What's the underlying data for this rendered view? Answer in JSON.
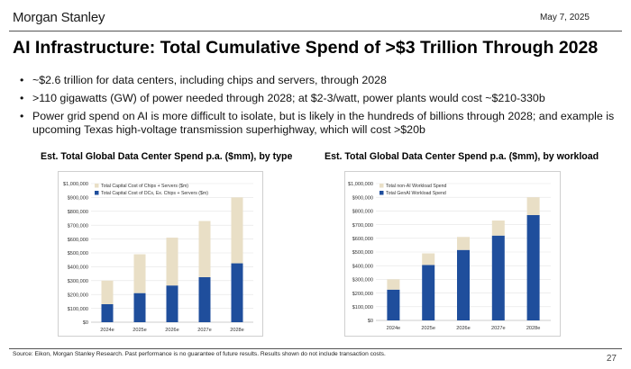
{
  "header": {
    "logo": "Morgan Stanley",
    "date": "May 7, 2025"
  },
  "title": "AI Infrastructure: Total Cumulative Spend of >$3 Trillion Through 2028",
  "bullets": [
    "~$2.6 trillion for data centers, including chips and servers, through 2028",
    ">110 gigawatts (GW) of power needed through 2028; at $2-3/watt, power plants would cost ~$210-330b",
    "Power grid spend on AI is more difficult to isolate, but is likely in the hundreds of billions through 2028; and example is upcoming Texas high-voltage transmission superhighway, which will cost >$20b"
  ],
  "colors": {
    "navy": "#1f4e9c",
    "beige": "#e9dfc6"
  },
  "chart_data": [
    {
      "type": "bar",
      "stacked": true,
      "title": "Est. Total Global Data Center Spend p.a. ($mm), by type",
      "categories": [
        "2024e",
        "2025e",
        "2026e",
        "2027e",
        "2028e"
      ],
      "series": [
        {
          "name": "Total Capital Cost of DCs, Ex. Chips + Servers ($m)",
          "color": "#1f4e9c",
          "values": [
            130000,
            210000,
            265000,
            325000,
            425000
          ]
        },
        {
          "name": "Total Capital Cost of Chips + Servers ($m)",
          "color": "#e9dfc6",
          "values": [
            170000,
            280000,
            345000,
            405000,
            475000
          ]
        }
      ],
      "ylim": [
        0,
        1000000
      ],
      "yticks": [
        "$0",
        "$100,000",
        "$200,000",
        "$300,000",
        "$400,000",
        "$500,000",
        "$600,000",
        "$700,000",
        "$800,000",
        "$900,000",
        "$1,000,000"
      ],
      "legend": "top-left",
      "grid": true
    },
    {
      "type": "bar",
      "stacked": true,
      "title": "Est. Total Global Data Center Spend p.a. ($mm), by workload",
      "categories": [
        "2024e",
        "2025e",
        "2026e",
        "2027e",
        "2028e"
      ],
      "series": [
        {
          "name": "Total GenAI Workload Spend",
          "color": "#1f4e9c",
          "values": [
            225000,
            405000,
            515000,
            620000,
            770000
          ]
        },
        {
          "name": "Total non-AI Workload Spend",
          "color": "#e9dfc6",
          "values": [
            75000,
            85000,
            95000,
            110000,
            130000
          ]
        }
      ],
      "ylim": [
        0,
        1000000
      ],
      "yticks": [
        "$0",
        "$100,000",
        "$200,000",
        "$300,000",
        "$400,000",
        "$500,000",
        "$600,000",
        "$700,000",
        "$800,000",
        "$900,000",
        "$1,000,000"
      ],
      "legend": "top-left",
      "grid": true
    }
  ],
  "footer": {
    "source": "Source: Eikon, Morgan Stanley Research. Past performance is no guarantee of future results. Results shown do not include transaction costs.",
    "page": "27"
  }
}
